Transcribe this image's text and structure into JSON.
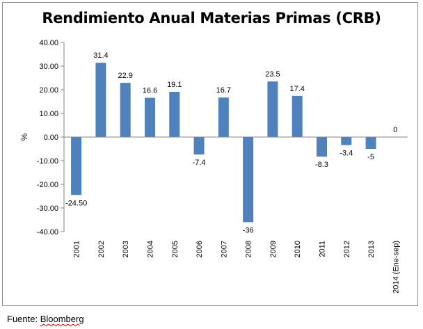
{
  "chart_data": {
    "type": "bar",
    "title": "Rendimiento Anual Materias Primas (CRB)",
    "xlabel": "",
    "ylabel": "%",
    "ylim": [
      -40,
      40
    ],
    "yticks": [
      "40.00",
      "30.00",
      "20.00",
      "10.00",
      "0.00",
      "-10.00",
      "-20.00",
      "-30.00",
      "-40.00"
    ],
    "ytick_values": [
      40,
      30,
      20,
      10,
      0,
      -10,
      -20,
      -30,
      -40
    ],
    "categories": [
      "2001",
      "2002",
      "2003",
      "2004",
      "2005",
      "2006",
      "2007",
      "2008",
      "2009",
      "2010",
      "2011",
      "2012",
      "2013",
      "2014 (Ene-sep)"
    ],
    "values": [
      -24.5,
      31.4,
      22.9,
      16.6,
      19.1,
      -7.4,
      16.7,
      -36,
      23.5,
      17.4,
      -8.3,
      -3.4,
      -5,
      0
    ],
    "data_labels": [
      "-24.50",
      "31.4",
      "22.9",
      "16.6",
      "19.1",
      "-7.4",
      "16.7",
      "-36",
      "23.5",
      "17.4",
      "-8.3",
      "-3.4",
      "-5",
      "0"
    ],
    "bar_color": "#4f81bd",
    "grid": false,
    "legend": "none"
  },
  "source": {
    "prefix": "Fuente: ",
    "name": "Bloomberg"
  }
}
